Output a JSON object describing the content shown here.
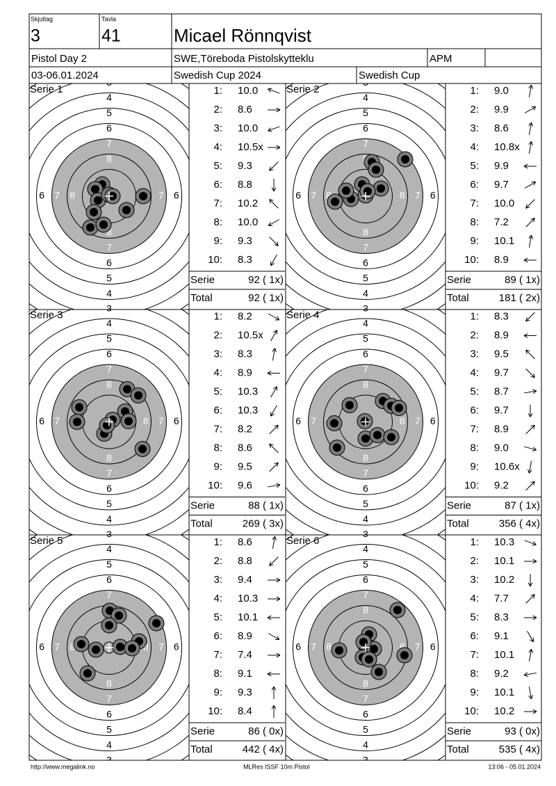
{
  "header": {
    "squad_label": "Skjutlag",
    "squad": "3",
    "target_label": "Tavla",
    "target": "41",
    "name": "Micael Rönnqvist",
    "event": "Pistol Day 2",
    "club": "SWE,Töreboda Pistolskytteklu",
    "class": "APM",
    "date": "03-06.01.2024",
    "competition": "Swedish Cup 2024",
    "series_name": "Swedish Cup"
  },
  "ring_labels": [
    "3",
    "4",
    "5",
    "6",
    "7",
    "8"
  ],
  "series": [
    {
      "title": "Serie 1",
      "shots": [
        {
          "n": "1:",
          "score": "10.0"
        },
        {
          "n": "2:",
          "score": "8.6"
        },
        {
          "n": "3:",
          "score": "10.0"
        },
        {
          "n": "4:",
          "score": "10.5x"
        },
        {
          "n": "5:",
          "score": "9.3"
        },
        {
          "n": "6:",
          "score": "8.8"
        },
        {
          "n": "7:",
          "score": "10.2"
        },
        {
          "n": "8:",
          "score": "10.0"
        },
        {
          "n": "9:",
          "score": "9.3"
        },
        {
          "n": "10:",
          "score": "8.3"
        }
      ],
      "serie_label": "Serie",
      "serie_score": "92 ( 1x)",
      "total_label": "Total",
      "total": "92 ( 1x)"
    },
    {
      "title": "Serie 2",
      "shots": [
        {
          "n": "1:",
          "score": "9.0"
        },
        {
          "n": "2:",
          "score": "9.9"
        },
        {
          "n": "3:",
          "score": "8.6"
        },
        {
          "n": "4:",
          "score": "10.8x"
        },
        {
          "n": "5:",
          "score": "9.9"
        },
        {
          "n": "6:",
          "score": "9.7"
        },
        {
          "n": "7:",
          "score": "10.0"
        },
        {
          "n": "8:",
          "score": "7.2"
        },
        {
          "n": "9:",
          "score": "10.1"
        },
        {
          "n": "10:",
          "score": "8.9"
        }
      ],
      "serie_label": "Serie",
      "serie_score": "89 ( 1x)",
      "total_label": "Total",
      "total": "181 ( 2x)"
    },
    {
      "title": "Serie 3",
      "shots": [
        {
          "n": "1:",
          "score": "8.2"
        },
        {
          "n": "2:",
          "score": "10.5x"
        },
        {
          "n": "3:",
          "score": "8.3"
        },
        {
          "n": "4:",
          "score": "8.9"
        },
        {
          "n": "5:",
          "score": "10.3"
        },
        {
          "n": "6:",
          "score": "10.3"
        },
        {
          "n": "7:",
          "score": "8.2"
        },
        {
          "n": "8:",
          "score": "8.6"
        },
        {
          "n": "9:",
          "score": "9.5"
        },
        {
          "n": "10:",
          "score": "9.6"
        }
      ],
      "serie_label": "Serie",
      "serie_score": "88 ( 1x)",
      "total_label": "Total",
      "total": "269 ( 3x)"
    },
    {
      "title": "Serie 4",
      "shots": [
        {
          "n": "1:",
          "score": "8.3"
        },
        {
          "n": "2:",
          "score": "8.9"
        },
        {
          "n": "3:",
          "score": "9.5"
        },
        {
          "n": "4:",
          "score": "9.7"
        },
        {
          "n": "5:",
          "score": "8.7"
        },
        {
          "n": "6:",
          "score": "9.7"
        },
        {
          "n": "7:",
          "score": "8.9"
        },
        {
          "n": "8:",
          "score": "9.0"
        },
        {
          "n": "9:",
          "score": "10.6x"
        },
        {
          "n": "10:",
          "score": "9.2"
        }
      ],
      "serie_label": "Serie",
      "serie_score": "87 ( 1x)",
      "total_label": "Total",
      "total": "356 ( 4x)"
    },
    {
      "title": "Serie 5",
      "shots": [
        {
          "n": "1:",
          "score": "8.6"
        },
        {
          "n": "2:",
          "score": "8.8"
        },
        {
          "n": "3:",
          "score": "9.4"
        },
        {
          "n": "4:",
          "score": "10.3"
        },
        {
          "n": "5:",
          "score": "10.1"
        },
        {
          "n": "6:",
          "score": "8.9"
        },
        {
          "n": "7:",
          "score": "7.4"
        },
        {
          "n": "8:",
          "score": "9.1"
        },
        {
          "n": "9:",
          "score": "9.3"
        },
        {
          "n": "10:",
          "score": "8.4"
        }
      ],
      "serie_label": "Serie",
      "serie_score": "86 ( 0x)",
      "total_label": "Total",
      "total": "442 ( 4x)"
    },
    {
      "title": "Serie 6",
      "shots": [
        {
          "n": "1:",
          "score": "10.3"
        },
        {
          "n": "2:",
          "score": "10.1"
        },
        {
          "n": "3:",
          "score": "10.2"
        },
        {
          "n": "4:",
          "score": "7.7"
        },
        {
          "n": "5:",
          "score": "8.3"
        },
        {
          "n": "6:",
          "score": "9.1"
        },
        {
          "n": "7:",
          "score": "10.1"
        },
        {
          "n": "8:",
          "score": "9.2"
        },
        {
          "n": "9:",
          "score": "10.1"
        },
        {
          "n": "10:",
          "score": "10.2"
        }
      ],
      "serie_label": "Serie",
      "serie_score": "93 ( 0x)",
      "total_label": "Total",
      "total": "535 ( 4x)"
    }
  ],
  "footer": {
    "url": "http://www.megalink.no",
    "software": "MLRes ISSF 10m Pistol",
    "timestamp": "13:06 - 05.01.2024"
  }
}
